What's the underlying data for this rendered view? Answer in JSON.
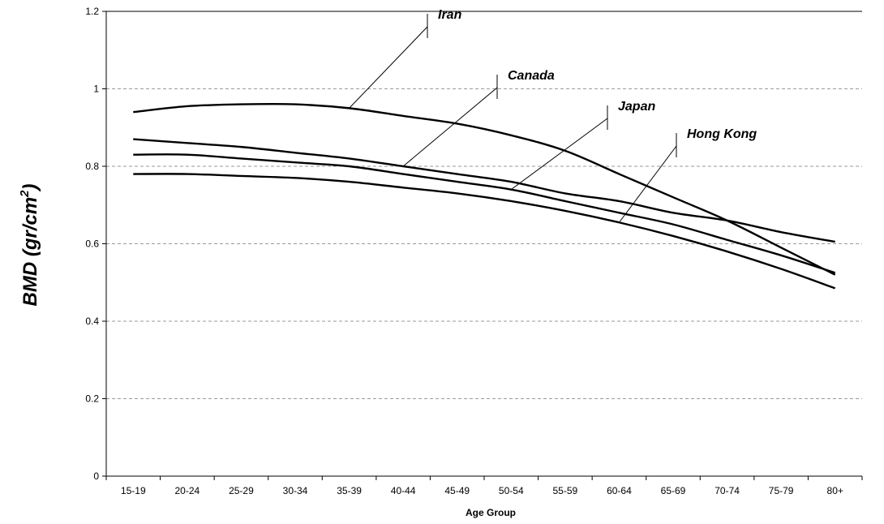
{
  "chart_data": {
    "type": "line",
    "xlabel": "Age Group",
    "ylabel": "BMD (gr/cm",
    "ylabel_sup": "2",
    "ylabel_close": ")",
    "categories": [
      "15-19",
      "20-24",
      "25-29",
      "30-34",
      "35-39",
      "40-44",
      "45-49",
      "50-54",
      "55-59",
      "60-64",
      "65-69",
      "70-74",
      "75-79",
      "80+"
    ],
    "ylim": [
      0,
      1.2
    ],
    "yticks": [
      "0",
      "0.2",
      "0.4",
      "0.6",
      "0.8",
      "1",
      "1.2"
    ],
    "grid": true,
    "series": [
      {
        "name": "Iran",
        "values": [
          0.94,
          0.955,
          0.96,
          0.96,
          0.95,
          0.93,
          0.91,
          0.88,
          0.84,
          0.78,
          0.72,
          0.66,
          0.59,
          0.52
        ]
      },
      {
        "name": "Canada",
        "values": [
          0.87,
          0.86,
          0.85,
          0.835,
          0.82,
          0.8,
          0.78,
          0.76,
          0.73,
          0.71,
          0.68,
          0.66,
          0.63,
          0.605
        ]
      },
      {
        "name": "Japan",
        "values": [
          0.83,
          0.83,
          0.82,
          0.81,
          0.8,
          0.78,
          0.76,
          0.74,
          0.71,
          0.68,
          0.65,
          0.61,
          0.57,
          0.525
        ]
      },
      {
        "name": "Hong Kong",
        "values": [
          0.78,
          0.78,
          0.775,
          0.77,
          0.76,
          0.745,
          0.73,
          0.71,
          0.685,
          0.655,
          0.62,
          0.58,
          0.535,
          0.485
        ]
      }
    ]
  }
}
